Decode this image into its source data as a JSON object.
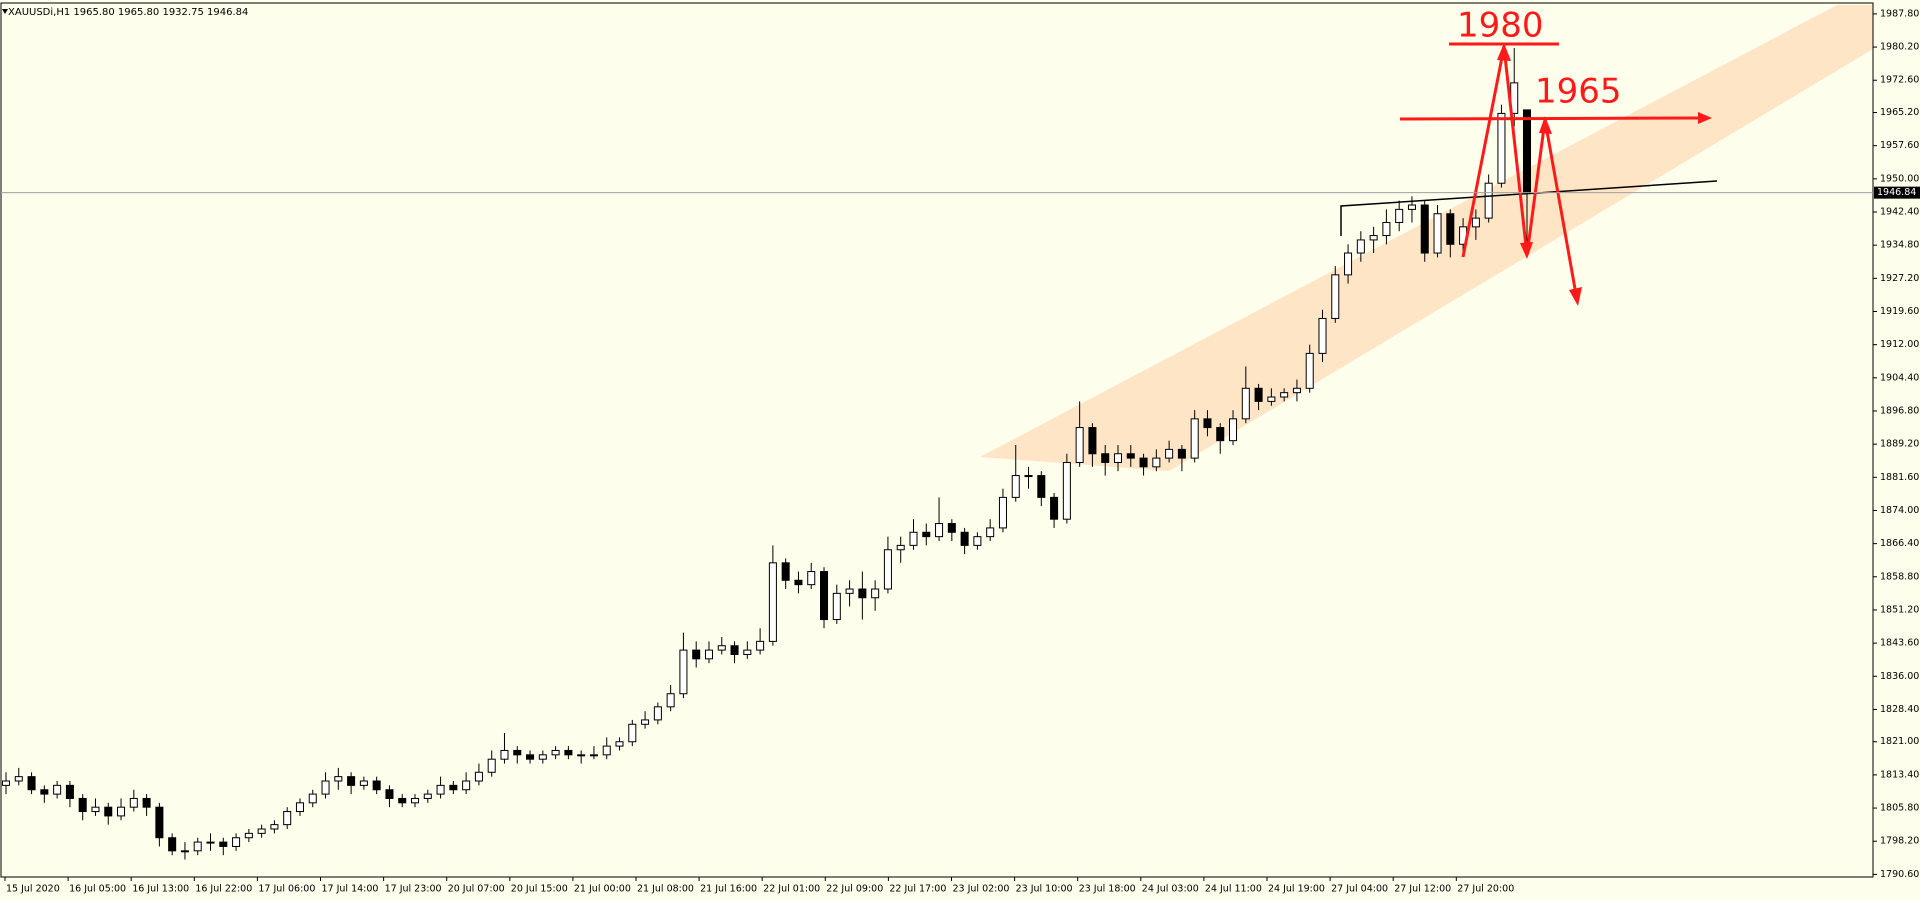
{
  "chart_data": {
    "type": "candlestick",
    "title": "XAUUSDi,H1  1965.80 1965.80 1932.75 1946.84",
    "candles": [
      [
        1811,
        1814,
        1809,
        1812
      ],
      [
        1812,
        1815,
        1811,
        1813
      ],
      [
        1813,
        1814,
        1809,
        1810
      ],
      [
        1810,
        1811,
        1807,
        1809
      ],
      [
        1809,
        1812,
        1808,
        1811
      ],
      [
        1811,
        1812,
        1806,
        1808
      ],
      [
        1808,
        1809,
        1803,
        1805
      ],
      [
        1805,
        1808,
        1804,
        1806
      ],
      [
        1806,
        1807,
        1802,
        1804
      ],
      [
        1804,
        1808,
        1803,
        1806
      ],
      [
        1806,
        1810,
        1805,
        1808
      ],
      [
        1808,
        1809,
        1804,
        1806
      ],
      [
        1806,
        1807,
        1797,
        1799
      ],
      [
        1799,
        1800,
        1795,
        1796
      ],
      [
        1796,
        1798,
        1794,
        1796
      ],
      [
        1796,
        1799,
        1795,
        1798
      ],
      [
        1798,
        1800,
        1796,
        1798
      ],
      [
        1798,
        1799,
        1795,
        1797
      ],
      [
        1797,
        1800,
        1796,
        1799
      ],
      [
        1799,
        1801,
        1798,
        1800
      ],
      [
        1800,
        1802,
        1799,
        1801
      ],
      [
        1801,
        1803,
        1800,
        1802
      ],
      [
        1802,
        1806,
        1801,
        1805
      ],
      [
        1805,
        1808,
        1804,
        1807
      ],
      [
        1807,
        1810,
        1806,
        1809
      ],
      [
        1809,
        1814,
        1808,
        1812
      ],
      [
        1812,
        1815,
        1810,
        1813
      ],
      [
        1813,
        1814,
        1809,
        1811
      ],
      [
        1811,
        1813,
        1810,
        1812
      ],
      [
        1812,
        1813,
        1809,
        1810
      ],
      [
        1810,
        1811,
        1806,
        1808
      ],
      [
        1808,
        1809,
        1806,
        1807
      ],
      [
        1807,
        1809,
        1806,
        1808
      ],
      [
        1808,
        1810,
        1807,
        1809
      ],
      [
        1809,
        1813,
        1808,
        1811
      ],
      [
        1811,
        1812,
        1809,
        1810
      ],
      [
        1810,
        1814,
        1809,
        1812
      ],
      [
        1812,
        1816,
        1811,
        1814
      ],
      [
        1814,
        1819,
        1813,
        1817
      ],
      [
        1817,
        1823,
        1816,
        1819
      ],
      [
        1819,
        1820,
        1816,
        1818
      ],
      [
        1818,
        1819,
        1816,
        1817
      ],
      [
        1817,
        1819,
        1816,
        1818
      ],
      [
        1818,
        1820,
        1817,
        1819
      ],
      [
        1819,
        1820,
        1817,
        1818
      ],
      [
        1818,
        1819,
        1816,
        1818
      ],
      [
        1818,
        1820,
        1817,
        1818
      ],
      [
        1818,
        1822,
        1817,
        1820
      ],
      [
        1820,
        1822,
        1819,
        1821
      ],
      [
        1821,
        1826,
        1820,
        1825
      ],
      [
        1825,
        1828,
        1824,
        1826
      ],
      [
        1826,
        1830,
        1825,
        1829
      ],
      [
        1829,
        1834,
        1828,
        1832
      ],
      [
        1832,
        1846,
        1831,
        1842
      ],
      [
        1842,
        1844,
        1838,
        1840
      ],
      [
        1840,
        1844,
        1839,
        1842
      ],
      [
        1842,
        1845,
        1841,
        1843
      ],
      [
        1843,
        1844,
        1839,
        1841
      ],
      [
        1841,
        1844,
        1840,
        1842
      ],
      [
        1842,
        1847,
        1841,
        1844
      ],
      [
        1844,
        1866,
        1843,
        1862
      ],
      [
        1862,
        1863,
        1856,
        1858
      ],
      [
        1858,
        1860,
        1855,
        1857
      ],
      [
        1857,
        1862,
        1856,
        1860
      ],
      [
        1860,
        1861,
        1847,
        1849
      ],
      [
        1849,
        1857,
        1848,
        1855
      ],
      [
        1855,
        1858,
        1852,
        1856
      ],
      [
        1856,
        1860,
        1849,
        1854
      ],
      [
        1854,
        1858,
        1851,
        1856
      ],
      [
        1856,
        1868,
        1855,
        1865
      ],
      [
        1865,
        1868,
        1862,
        1866
      ],
      [
        1866,
        1872,
        1865,
        1869
      ],
      [
        1869,
        1871,
        1866,
        1868
      ],
      [
        1868,
        1877,
        1867,
        1871
      ],
      [
        1871,
        1872,
        1867,
        1869
      ],
      [
        1869,
        1870,
        1864,
        1866
      ],
      [
        1866,
        1869,
        1865,
        1868
      ],
      [
        1868,
        1872,
        1867,
        1870
      ],
      [
        1870,
        1879,
        1869,
        1877
      ],
      [
        1877,
        1889,
        1876,
        1882
      ],
      [
        1882,
        1884,
        1879,
        1882
      ],
      [
        1882,
        1883,
        1875,
        1877
      ],
      [
        1877,
        1878,
        1870,
        1872
      ],
      [
        1872,
        1887,
        1871,
        1885
      ],
      [
        1885,
        1899,
        1884,
        1893
      ],
      [
        1893,
        1894,
        1884,
        1887
      ],
      [
        1887,
        1889,
        1882,
        1885
      ],
      [
        1885,
        1889,
        1883,
        1887
      ],
      [
        1887,
        1889,
        1884,
        1886
      ],
      [
        1886,
        1887,
        1882,
        1884
      ],
      [
        1884,
        1888,
        1883,
        1886
      ],
      [
        1886,
        1890,
        1885,
        1888
      ],
      [
        1888,
        1889,
        1883,
        1886
      ],
      [
        1886,
        1897,
        1885,
        1895
      ],
      [
        1895,
        1897,
        1891,
        1893
      ],
      [
        1893,
        1894,
        1887,
        1890
      ],
      [
        1890,
        1897,
        1889,
        1895
      ],
      [
        1895,
        1907,
        1894,
        1902
      ],
      [
        1902,
        1903,
        1897,
        1899
      ],
      [
        1899,
        1902,
        1898,
        1900
      ],
      [
        1900,
        1902,
        1899,
        1901
      ],
      [
        1901,
        1904,
        1899,
        1902
      ],
      [
        1902,
        1912,
        1901,
        1910
      ],
      [
        1910,
        1920,
        1908,
        1918
      ],
      [
        1918,
        1930,
        1917,
        1928
      ],
      [
        1928,
        1935,
        1926,
        1933
      ],
      [
        1933,
        1938,
        1931,
        1936
      ],
      [
        1936,
        1939,
        1933,
        1937
      ],
      [
        1937,
        1943,
        1935,
        1940
      ],
      [
        1940,
        1945,
        1938,
        1943
      ],
      [
        1943,
        1946,
        1940,
        1944
      ],
      [
        1944,
        1945,
        1931,
        1933
      ],
      [
        1933,
        1944,
        1932,
        1942
      ],
      [
        1942,
        1943,
        1932,
        1935
      ],
      [
        1935,
        1941,
        1933,
        1939
      ],
      [
        1939,
        1943,
        1936,
        1941
      ],
      [
        1941,
        1951,
        1940,
        1949
      ],
      [
        1949,
        1967,
        1948,
        1965
      ],
      [
        1965,
        1980,
        1962,
        1972
      ],
      [
        1965.8,
        1965.8,
        1932.75,
        1946.84
      ]
    ],
    "x_labels": [
      "15 Jul 2020",
      "16 Jul 05:00",
      "16 Jul 13:00",
      "16 Jul 22:00",
      "17 Jul 06:00",
      "17 Jul 14:00",
      "17 Jul 23:00",
      "20 Jul 07:00",
      "20 Jul 15:00",
      "21 Jul 00:00",
      "21 Jul 08:00",
      "21 Jul 16:00",
      "22 Jul 01:00",
      "22 Jul 09:00",
      "22 Jul 17:00",
      "23 Jul 02:00",
      "23 Jul 10:00",
      "23 Jul 18:00",
      "24 Jul 03:00",
      "24 Jul 11:00",
      "24 Jul 19:00",
      "27 Jul 04:00",
      "27 Jul 12:00",
      "27 Jul 20:00"
    ],
    "ylim": [
      1790.0,
      1990.3
    ],
    "yticks": [
      {
        "value": 1987.8,
        "label": "1987.80"
      },
      {
        "value": 1980.2,
        "label": "1980.20"
      },
      {
        "value": 1972.6,
        "label": "1972.60"
      },
      {
        "value": 1965.2,
        "label": "1965.20"
      },
      {
        "value": 1957.6,
        "label": "1957.60"
      },
      {
        "value": 1950,
        "label": "1950.00"
      },
      {
        "value": 1942.4,
        "label": "1942.40"
      },
      {
        "value": 1934.8,
        "label": "1934.80"
      },
      {
        "value": 1927.2,
        "label": "1927.20"
      },
      {
        "value": 1919.6,
        "label": "1919.60"
      },
      {
        "value": 1912,
        "label": "1912.00"
      },
      {
        "value": 1904.4,
        "label": "1904.40"
      },
      {
        "value": 1896.8,
        "label": "1896.80"
      },
      {
        "value": 1889.2,
        "label": "1889.20"
      },
      {
        "value": 1881.6,
        "label": "1881.60"
      },
      {
        "value": 1874,
        "label": "1874.00"
      },
      {
        "value": 1866.4,
        "label": "1866.40"
      },
      {
        "value": 1858.8,
        "label": "1858.80"
      },
      {
        "value": 1851.2,
        "label": "1851.20"
      },
      {
        "value": 1843.6,
        "label": "1843.60"
      },
      {
        "value": 1836,
        "label": "1836.00"
      },
      {
        "value": 1828.4,
        "label": "1828.40"
      },
      {
        "value": 1821,
        "label": "1821.00"
      },
      {
        "value": 1813.4,
        "label": "1813.40"
      },
      {
        "value": 1805.8,
        "label": "1805.80"
      },
      {
        "value": 1798.2,
        "label": "1798.20"
      },
      {
        "value": 1790.6,
        "label": "1790.60"
      }
    ],
    "annotations": [
      "1980",
      "1965"
    ],
    "up_color": "#ffffff",
    "down_color": "#000000",
    "annotation_color": "#ff1a1a"
  }
}
